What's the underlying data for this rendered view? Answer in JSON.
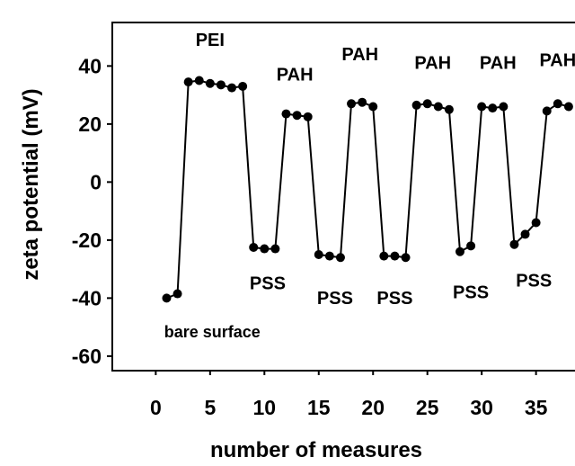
{
  "chart_data": {
    "type": "line",
    "title": "",
    "xlabel": "number of measures",
    "ylabel": "zeta potential (mV)",
    "xlim": [
      -4,
      39
    ],
    "ylim": [
      -65,
      55
    ],
    "x_ticks": [
      "0",
      "5",
      "10",
      "15",
      "20",
      "25",
      "30",
      "35"
    ],
    "y_ticks": [
      "40",
      "20",
      "0",
      "-20",
      "-40",
      "-60"
    ],
    "grid": false,
    "legend": "none",
    "line_color": "#000000",
    "series": [
      {
        "x": [
          1,
          2,
          3,
          4,
          5,
          6,
          7,
          8,
          9,
          10,
          11,
          12,
          13,
          14,
          15,
          16,
          17,
          18,
          19,
          20,
          21,
          22,
          23,
          24,
          25,
          26,
          27,
          28,
          29,
          30,
          31,
          32,
          33,
          34,
          35,
          36,
          37,
          38
        ],
        "values": [
          -40,
          -38.5,
          34.5,
          35,
          34,
          33.5,
          32.5,
          33,
          -22.5,
          -23,
          -23,
          23.5,
          23,
          22.5,
          -25,
          -25.5,
          -26,
          27,
          27.5,
          26,
          -25.5,
          -25.5,
          -26,
          26.5,
          27,
          26,
          25,
          -24,
          -22,
          26,
          25.5,
          26,
          -21.5,
          -18,
          -14,
          24.5,
          27,
          26
        ]
      }
    ],
    "annotations": [
      {
        "text": "PEI",
        "x": 5,
        "y": 47
      },
      {
        "text": "PAH",
        "x": 12.8,
        "y": 35
      },
      {
        "text": "PAH",
        "x": 18.8,
        "y": 42
      },
      {
        "text": "PAH",
        "x": 25.5,
        "y": 39
      },
      {
        "text": "PAH",
        "x": 31.5,
        "y": 39
      },
      {
        "text": "PAH",
        "x": 37,
        "y": 40
      },
      {
        "text": "PSS",
        "x": 10.3,
        "y": -37
      },
      {
        "text": "PSS",
        "x": 16.5,
        "y": -42
      },
      {
        "text": "PSS",
        "x": 22,
        "y": -42
      },
      {
        "text": "PSS",
        "x": 29,
        "y": -40
      },
      {
        "text": "PSS",
        "x": 34.8,
        "y": -36
      },
      {
        "text": "bare surface",
        "x": 5.2,
        "y": -53.5
      }
    ]
  }
}
